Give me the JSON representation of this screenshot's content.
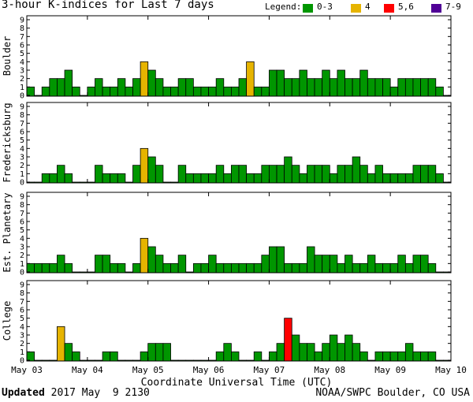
{
  "title": "3-hour K-indices for Last 7 days",
  "legend": {
    "label": "Legend:",
    "items": [
      {
        "label": "0-3",
        "color": "#009600"
      },
      {
        "label": "4",
        "color": "#e6b400"
      },
      {
        "label": "5,6",
        "color": "#ff0000"
      },
      {
        "label": "7-9",
        "color": "#500096"
      }
    ]
  },
  "footer": {
    "updated_label": "Updated",
    "updated_value": "2017 May  9 2130",
    "source": "NOAA/SWPC Boulder, CO USA"
  },
  "chart_data": {
    "type": "bar",
    "xlabel": "Coordinate Universal Time (UTC)",
    "x_ticks": [
      "May 03",
      "May 04",
      "May 05",
      "May 06",
      "May 07",
      "May 08",
      "May 09",
      "May 10"
    ],
    "ylim": [
      0,
      9
    ],
    "y_ticks": [
      0,
      1,
      2,
      3,
      4,
      5,
      6,
      7,
      8,
      9
    ],
    "bins_per_day": 8,
    "grid": false,
    "series": [
      {
        "name": "Boulder",
        "values": [
          1,
          0,
          1,
          2,
          2,
          3,
          1,
          0,
          1,
          2,
          1,
          1,
          2,
          1,
          2,
          4,
          3,
          2,
          1,
          1,
          2,
          2,
          1,
          1,
          1,
          2,
          1,
          1,
          2,
          4,
          1,
          1,
          3,
          3,
          2,
          2,
          3,
          2,
          2,
          3,
          2,
          3,
          2,
          2,
          3,
          2,
          2,
          2,
          1,
          2,
          2,
          2,
          2,
          2,
          1,
          0
        ]
      },
      {
        "name": "Fredericksburg",
        "values": [
          0,
          0,
          1,
          1,
          2,
          1,
          0,
          0,
          0,
          2,
          1,
          1,
          1,
          0,
          2,
          4,
          3,
          2,
          0,
          0,
          2,
          1,
          1,
          1,
          1,
          2,
          1,
          2,
          2,
          1,
          1,
          2,
          2,
          2,
          3,
          2,
          1,
          2,
          2,
          2,
          1,
          2,
          2,
          3,
          2,
          1,
          2,
          1,
          1,
          1,
          1,
          2,
          2,
          2,
          1,
          0
        ]
      },
      {
        "name": "Est. Planetary",
        "values": [
          1,
          1,
          1,
          1,
          2,
          1,
          0,
          0,
          0,
          2,
          2,
          1,
          1,
          0,
          1,
          4,
          3,
          2,
          1,
          1,
          2,
          0,
          1,
          1,
          2,
          1,
          1,
          1,
          1,
          1,
          1,
          2,
          3,
          3,
          1,
          1,
          1,
          3,
          2,
          2,
          2,
          1,
          2,
          1,
          1,
          2,
          1,
          1,
          1,
          2,
          1,
          2,
          2,
          1,
          0,
          0
        ]
      },
      {
        "name": "College",
        "values": [
          1,
          0,
          0,
          0,
          4,
          2,
          1,
          0,
          0,
          0,
          1,
          1,
          0,
          0,
          0,
          1,
          2,
          2,
          2,
          0,
          0,
          0,
          0,
          0,
          0,
          1,
          2,
          1,
          0,
          0,
          1,
          0,
          1,
          2,
          5,
          3,
          2,
          2,
          1,
          2,
          3,
          2,
          3,
          2,
          1,
          0,
          1,
          1,
          1,
          1,
          2,
          1,
          1,
          1,
          0,
          0
        ]
      }
    ]
  }
}
